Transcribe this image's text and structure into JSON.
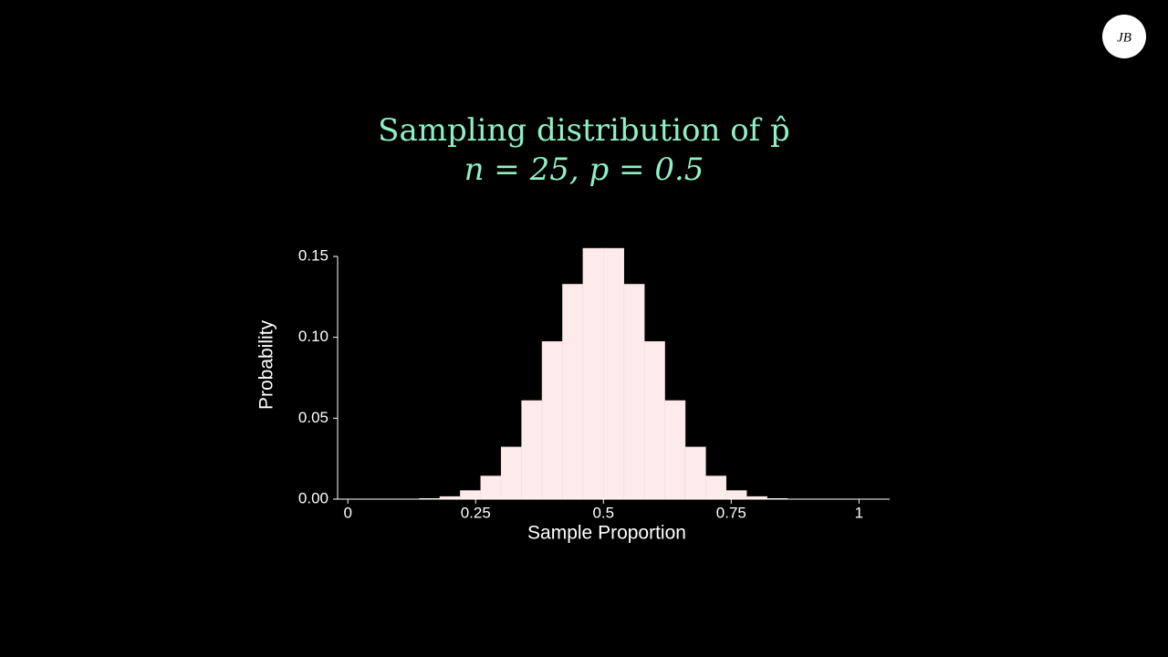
{
  "logo": "JB",
  "chart_data": {
    "type": "histogram",
    "title": "Sampling distribution of p̂",
    "subtitle": "n = 25, p = 0.5",
    "xlabel": "Sample Proportion",
    "ylabel": "Probability",
    "bins": [
      -0.02,
      0.02,
      0.06,
      0.1,
      0.14,
      0.18,
      0.22,
      0.26,
      0.3,
      0.34,
      0.38,
      0.42,
      0.46,
      0.5,
      0.54,
      0.58,
      0.62,
      0.66,
      0.7,
      0.74,
      0.78,
      0.82,
      0.86,
      0.9,
      0.94,
      0.98,
      1.02
    ],
    "values": [
      0,
      0,
      0,
      0.0001,
      0.0004,
      0.0016,
      0.0053,
      0.0143,
      0.0322,
      0.0609,
      0.0974,
      0.1328,
      0.155,
      0.155,
      0.1328,
      0.0974,
      0.0609,
      0.0322,
      0.0143,
      0.0053,
      0.0016,
      0.0004,
      0.0001,
      0,
      0,
      0
    ],
    "color": "#fdeaea",
    "xlim": [
      -0.02,
      1.06
    ],
    "ylim": [
      0,
      0.15
    ],
    "xticks": [
      0,
      0.25,
      0.5,
      0.75,
      1
    ],
    "yticks": [
      {
        "value": 0,
        "label": "0.00"
      },
      0.05,
      {
        "value": 0.1,
        "label": "0.10"
      },
      0.15
    ]
  }
}
